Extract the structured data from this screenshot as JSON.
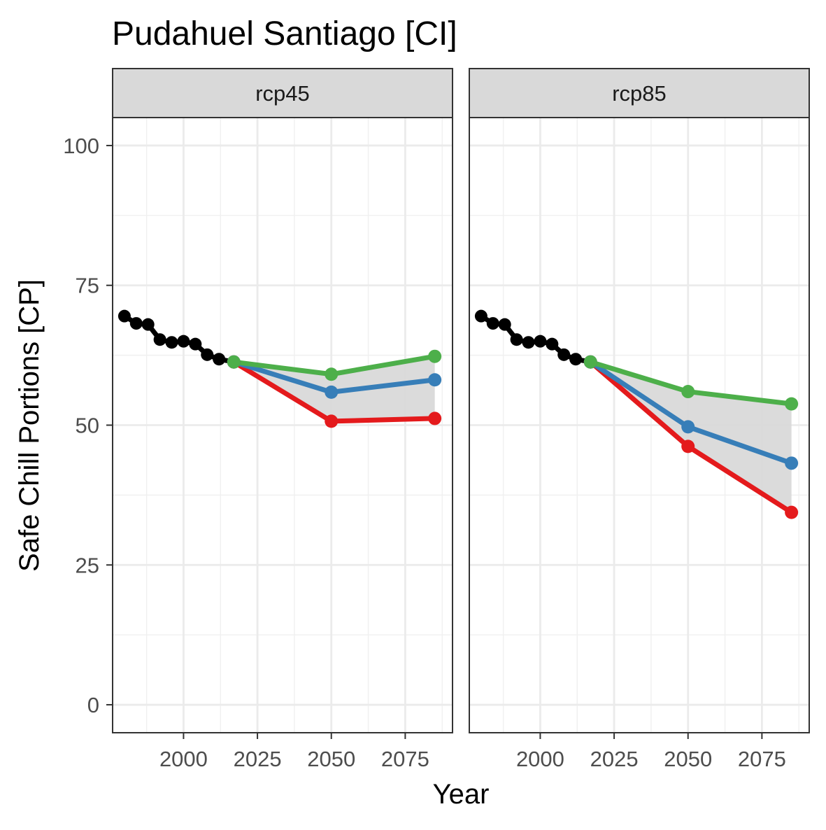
{
  "chart_data": {
    "type": "line",
    "title": "Pudahuel Santiago [CI]",
    "xlabel": "Year",
    "ylabel": "Safe Chill Portions [CP]",
    "xlim": [
      1976,
      2091
    ],
    "ylim": [
      -5,
      105
    ],
    "xticks": [
      2000,
      2025,
      2050,
      2075
    ],
    "yticks": [
      0,
      25,
      50,
      75,
      100
    ],
    "x_minor_ticks": [
      1987.5,
      2012.5,
      2037.5,
      2062.5,
      2087.5
    ],
    "y_minor_ticks": [
      12.5,
      37.5,
      62.5,
      87.5
    ],
    "grid": true,
    "colors": {
      "historic": "#000000",
      "low": "#e41a1c",
      "median": "#377eb8",
      "high": "#4daf4a",
      "ribbon": "#d9d9d9"
    },
    "panels": [
      {
        "label": "rcp45",
        "historic": {
          "x": [
            1980,
            1984,
            1988,
            1992,
            1996,
            2000,
            2004,
            2008,
            2012,
            2017
          ],
          "y": [
            69.5,
            68.2,
            68.0,
            65.3,
            64.8,
            65.0,
            64.5,
            62.6,
            61.8,
            61.3
          ]
        },
        "series": [
          {
            "x": [
              2017,
              2050,
              2085
            ],
            "y": [
              61.3,
              50.7,
              51.2
            ]
          },
          {
            "x": [
              2017,
              2050,
              2085
            ],
            "y": [
              61.3,
              55.9,
              58.1
            ]
          },
          {
            "x": [
              2017,
              2050,
              2085
            ],
            "y": [
              61.3,
              59.1,
              62.3
            ]
          }
        ],
        "ribbon": {
          "x": [
            2017,
            2050,
            2085
          ],
          "lower": [
            61.3,
            50.7,
            51.2
          ],
          "upper": [
            61.3,
            59.1,
            62.3
          ]
        }
      },
      {
        "label": "rcp85",
        "historic": {
          "x": [
            1980,
            1984,
            1988,
            1992,
            1996,
            2000,
            2004,
            2008,
            2012,
            2017
          ],
          "y": [
            69.5,
            68.2,
            68.0,
            65.3,
            64.8,
            65.0,
            64.5,
            62.6,
            61.8,
            61.3
          ]
        },
        "series": [
          {
            "x": [
              2017,
              2050,
              2085
            ],
            "y": [
              61.3,
              46.2,
              34.4
            ]
          },
          {
            "x": [
              2017,
              2050,
              2085
            ],
            "y": [
              61.3,
              49.7,
              43.2
            ]
          },
          {
            "x": [
              2017,
              2050,
              2085
            ],
            "y": [
              61.3,
              56.0,
              53.8
            ]
          }
        ],
        "ribbon": {
          "x": [
            2017,
            2050,
            2085
          ],
          "lower": [
            61.3,
            46.2,
            34.4
          ],
          "upper": [
            61.3,
            56.0,
            53.8
          ]
        }
      }
    ]
  }
}
